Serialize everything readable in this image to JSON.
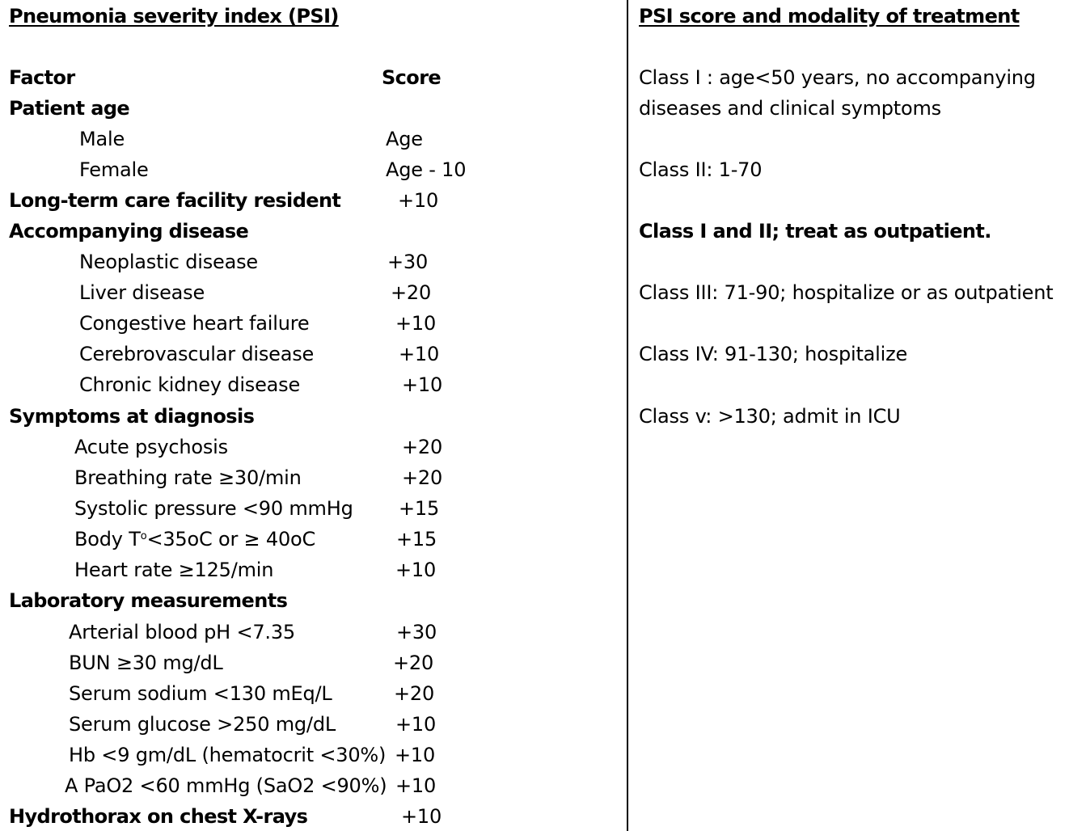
{
  "left": {
    "title": "Pneumonia severity index (PSI)",
    "header": {
      "factor": "Factor",
      "score": "Score"
    },
    "rows": [
      {
        "label": "Patient age",
        "score": "",
        "bold": true
      },
      {
        "label": "Male",
        "score": "Age"
      },
      {
        "label": "Female",
        "score": "Age - 10"
      },
      {
        "label": "Long-term care facility resident",
        "score": "+10",
        "bold": true
      },
      {
        "label": "Accompanying disease",
        "score": "",
        "bold": true
      },
      {
        "label": "Neoplastic disease",
        "score": "+30"
      },
      {
        "label": "Liver disease",
        "score": "+20"
      },
      {
        "label": "Congestive heart failure",
        "score": "+10"
      },
      {
        "label": "Cerebrovascular disease",
        "score": "+10"
      },
      {
        "label": "Chronic kidney disease",
        "score": "+10"
      },
      {
        "label": "Symptoms at diagnosis",
        "score": "",
        "bold": true
      },
      {
        "label": "Acute psychosis",
        "score": "+20"
      },
      {
        "label": "Breathing rate ≥30/min",
        "score": "+20"
      },
      {
        "label": "Systolic pressure <90 mmHg",
        "score": "+15"
      },
      {
        "label_pre": "Body T",
        "label_sup": "o",
        "label_post": "<35oC or ≥ 40oC",
        "score": "+15"
      },
      {
        "label": "Heart rate ≥125/min",
        "score": "+10"
      },
      {
        "label": "Laboratory measurements",
        "score": "",
        "bold": true
      },
      {
        "label": "Arterial blood pH <7.35",
        "score": "+30"
      },
      {
        "label": "BUN ≥30 mg/dL",
        "score": "+20"
      },
      {
        "label": "Serum sodium <130 mEq/L",
        "score": "+20"
      },
      {
        "label": "Serum glucose >250 mg/dL",
        "score": "+10"
      },
      {
        "label": "Hb <9 gm/dL (hematocrit <30%)",
        "score": "+10"
      },
      {
        "label": "A PaO2 <60 mmHg (SaO2 <90%)",
        "score": "+10"
      },
      {
        "label": "Hydrothorax on chest X-rays",
        "score": "+10",
        "bold": true
      }
    ]
  },
  "right": {
    "title": "PSI score and modality of treatment",
    "class1_line1": "Class I : age<50 years, no accompanying",
    "class1_line2": "diseases and clinical symptoms",
    "class2": "Class II: 1-70",
    "class12_note": "Class I and II; treat as outpatient.",
    "class3": "Class III: 71-90; hospitalize or as outpatient",
    "class4": "Class IV: 91-130; hospitalize",
    "class5": "Class v: >130; admit in ICU"
  }
}
